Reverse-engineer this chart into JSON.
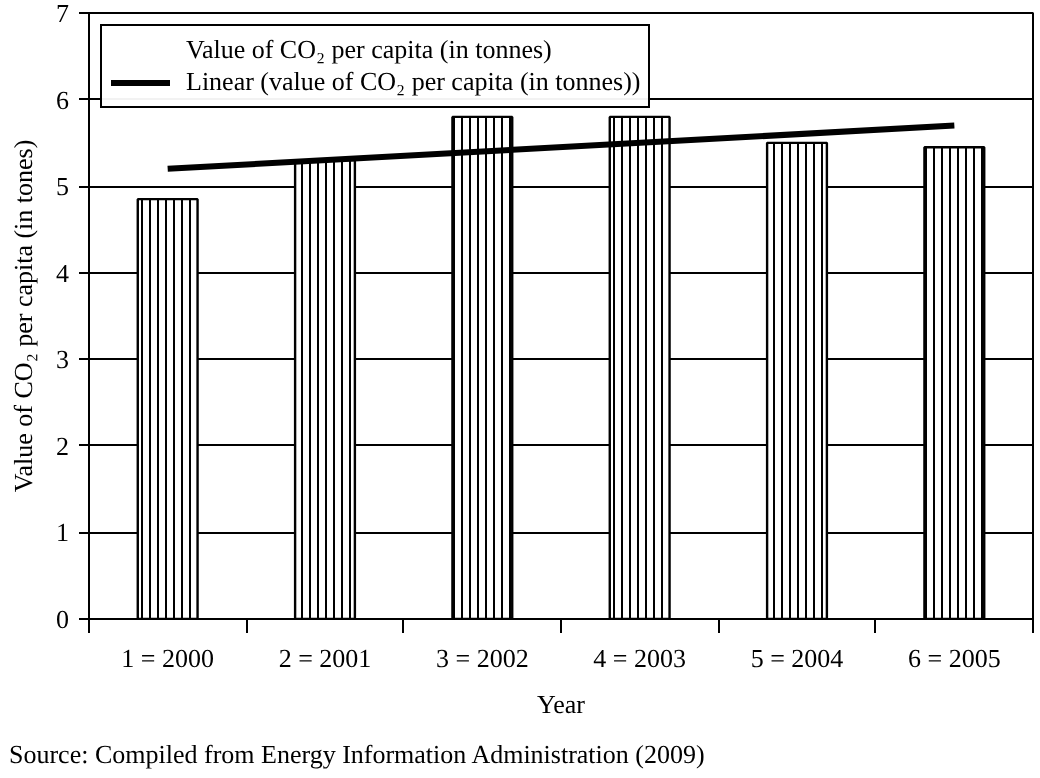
{
  "chart_data": {
    "type": "bar",
    "xlabel": "Year",
    "ylabel": "Value of CO₂ per capita (in tones)",
    "categories": [
      "1 = 2000",
      "2 = 2001",
      "3 = 2002",
      "4 = 2003",
      "5 = 2004",
      "6 = 2005"
    ],
    "series": [
      {
        "name": "Value of CO₂ per capita (in tonnes)",
        "color": "#000000",
        "values": [
          4.85,
          5.3,
          5.8,
          5.8,
          5.5,
          5.45
        ]
      },
      {
        "name": "Linear (value of CO₂ per capita (in tonnes))",
        "type": "line",
        "color": "#000000",
        "x": [
          "1 = 2000",
          "6 = 2005"
        ],
        "values": [
          5.2,
          5.7
        ]
      }
    ],
    "ylim": [
      0,
      7
    ],
    "yticks": [
      0,
      1,
      2,
      3,
      4,
      5,
      6,
      7
    ],
    "grid": "y",
    "legend": "top left",
    "annotations": [
      "Source: Compiled from Energy Information Administration (2009)"
    ]
  }
}
